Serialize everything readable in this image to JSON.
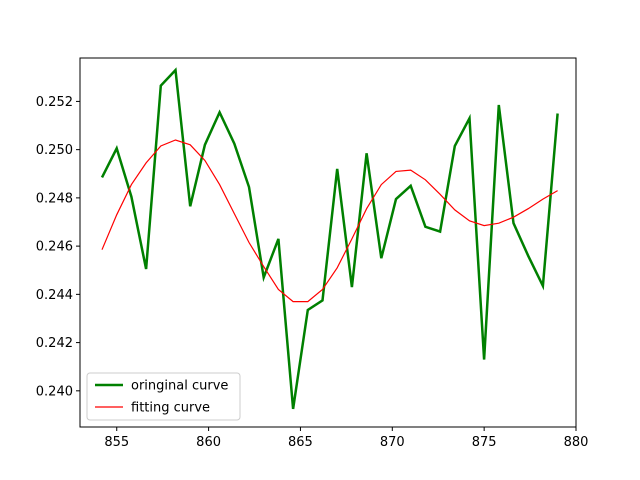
{
  "chart_data": {
    "type": "line",
    "title": "",
    "xlabel": "",
    "ylabel": "",
    "xlim": [
      853,
      880
    ],
    "ylim": [
      0.2385,
      0.2538
    ],
    "xticks": [
      855,
      860,
      865,
      870,
      875,
      880
    ],
    "yticks": [
      0.24,
      0.242,
      0.244,
      0.246,
      0.248,
      0.25,
      0.252
    ],
    "xtick_labels": [
      "855",
      "860",
      "865",
      "870",
      "875",
      "880"
    ],
    "ytick_labels": [
      "0.240",
      "0.242",
      "0.244",
      "0.246",
      "0.248",
      "0.250",
      "0.252"
    ],
    "grid": false,
    "legend_position": "lower-left",
    "series": [
      {
        "name": "oringinal curve",
        "color": "#008000",
        "x": [
          854.2,
          855.0,
          855.8,
          856.6,
          857.4,
          858.2,
          859.0,
          859.8,
          860.6,
          861.4,
          862.2,
          863.0,
          863.8,
          864.6,
          865.4,
          866.2,
          867.0,
          867.8,
          868.6,
          869.4,
          870.2,
          871.0,
          871.8,
          872.6,
          873.4,
          874.2,
          875.0,
          875.8,
          876.6,
          877.4,
          878.2,
          879.0
        ],
        "y": [
          0.24885,
          0.25005,
          0.24805,
          0.24505,
          0.25265,
          0.2533,
          0.24765,
          0.2502,
          0.25155,
          0.25025,
          0.24845,
          0.2447,
          0.2463,
          0.23925,
          0.24335,
          0.24375,
          0.2492,
          0.2443,
          0.24985,
          0.2455,
          0.24795,
          0.2485,
          0.2468,
          0.2466,
          0.25015,
          0.2513,
          0.2413,
          0.25185,
          0.24695,
          0.2456,
          0.24435,
          0.2515
        ]
      },
      {
        "name": "fitting curve",
        "color": "#ff0000",
        "x": [
          854.2,
          855.0,
          855.8,
          856.6,
          857.4,
          858.2,
          859.0,
          859.8,
          860.6,
          861.4,
          862.2,
          863.0,
          863.8,
          864.6,
          865.4,
          866.2,
          867.0,
          867.8,
          868.6,
          869.4,
          870.2,
          871.0,
          871.8,
          872.6,
          873.4,
          874.2,
          875.0,
          875.8,
          876.6,
          877.4,
          878.2,
          879.0
        ],
        "y": [
          0.24585,
          0.2473,
          0.24855,
          0.24945,
          0.25015,
          0.2504,
          0.2502,
          0.24955,
          0.24855,
          0.24735,
          0.24615,
          0.24515,
          0.2442,
          0.2437,
          0.2437,
          0.2442,
          0.2451,
          0.2463,
          0.24755,
          0.24855,
          0.2491,
          0.24915,
          0.24875,
          0.24815,
          0.2475,
          0.24705,
          0.24685,
          0.24695,
          0.2472,
          0.24755,
          0.24795,
          0.2483
        ]
      }
    ]
  }
}
